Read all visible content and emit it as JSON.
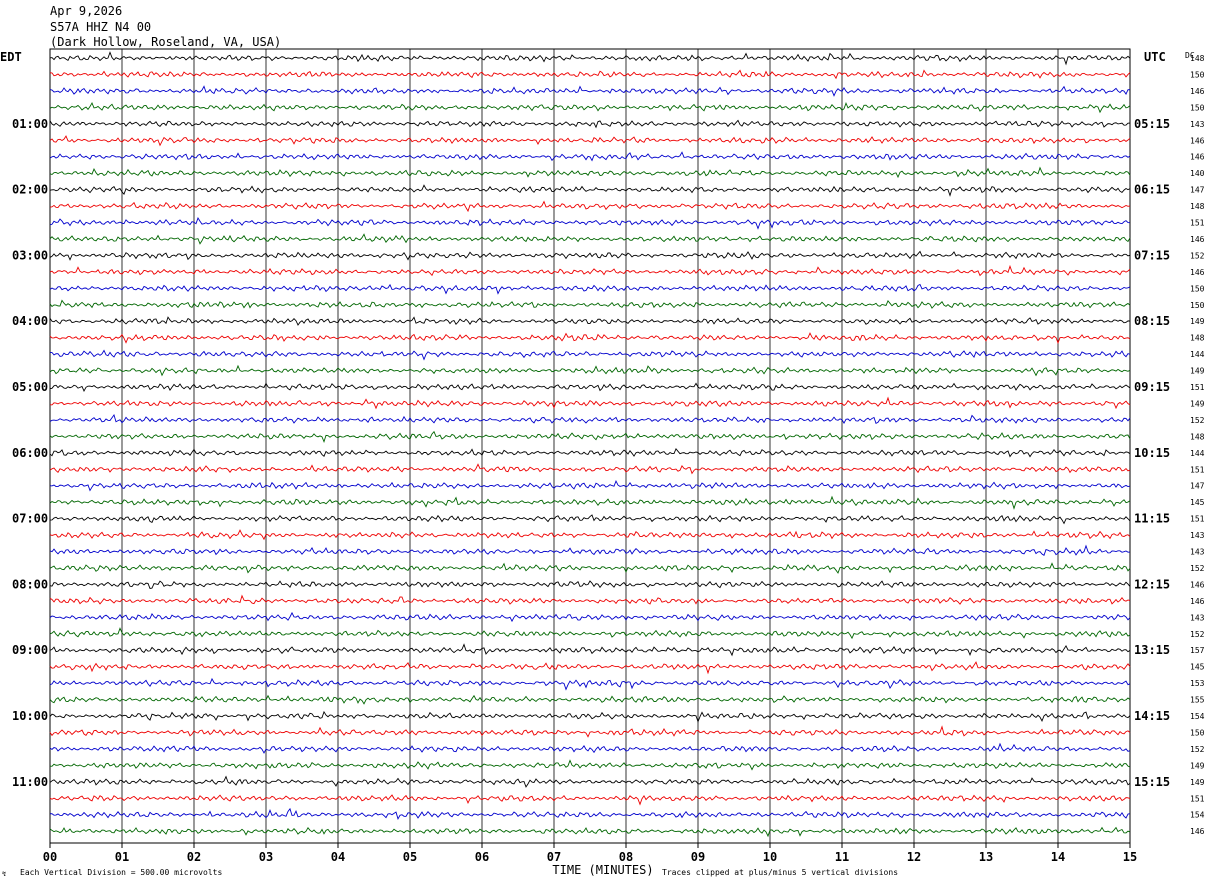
{
  "header": {
    "date": "Apr 9,2026",
    "station": "S57A HHZ N4 00",
    "location": "(Dark Hollow, Roseland, VA, USA)"
  },
  "axes": {
    "left_zone_label": "EDT",
    "right_zone_label": "UTC",
    "dc_label": "DC",
    "x_title": "TIME (MINUTES)"
  },
  "footer": {
    "scale_note": "Each Vertical Division =  500.00 microvolts",
    "clip_note": "Traces clipped at plus/minus 5 vertical divisions"
  },
  "colors": {
    "trace_cycle": [
      "#000000",
      "#ee0000",
      "#0000cc",
      "#006600"
    ],
    "grid": "#000000",
    "background": "#ffffff"
  },
  "chart_data": {
    "type": "line",
    "description_kind": "helicorder seismogram",
    "x_range_minutes": [
      0,
      15
    ],
    "x_tick_labels": [
      "00",
      "01",
      "02",
      "03",
      "04",
      "05",
      "06",
      "07",
      "08",
      "09",
      "10",
      "11",
      "12",
      "13",
      "14",
      "15"
    ],
    "row_count": 48,
    "rows_per_hour": 4,
    "left_hour_labels": [
      "01:00",
      "02:00",
      "03:00",
      "04:00",
      "05:00",
      "06:00",
      "07:00",
      "08:00",
      "09:00",
      "10:00",
      "11:00"
    ],
    "right_hour_labels": [
      "05:15",
      "06:15",
      "07:15",
      "08:15",
      "09:15",
      "10:15",
      "11:15",
      "12:15",
      "13:15",
      "14:15",
      "15:15"
    ],
    "dc_offsets": [
      148,
      150,
      146,
      150,
      143,
      146,
      146,
      140,
      147,
      148,
      151,
      146,
      152,
      146,
      150,
      150,
      149,
      148,
      144,
      149,
      151,
      149,
      152,
      148,
      144,
      151,
      147,
      145,
      151,
      143,
      143,
      152,
      146,
      146,
      143,
      152,
      157,
      145,
      153,
      155,
      154,
      150,
      152,
      149,
      149,
      151,
      154,
      146
    ],
    "grid": true
  }
}
